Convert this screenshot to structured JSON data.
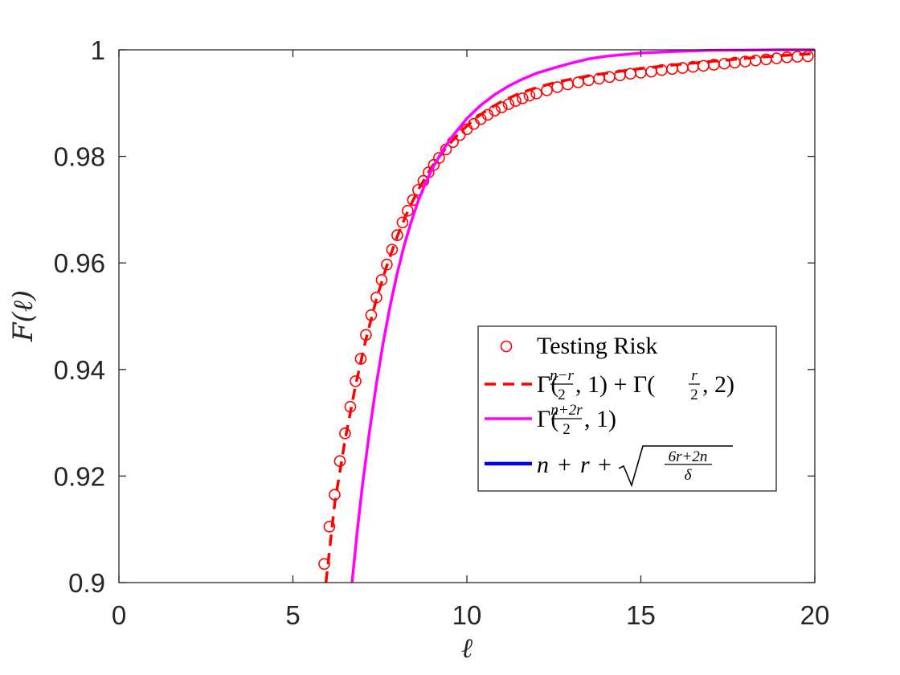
{
  "chart_data": {
    "type": "line",
    "xlabel": "ℓ",
    "ylabel": "F(ℓ)",
    "xlim": [
      0,
      20
    ],
    "ylim": [
      0.9,
      1
    ],
    "x_ticks": [
      "0",
      "5",
      "10",
      "15",
      "20"
    ],
    "y_ticks": [
      "0.9",
      "0.92",
      "0.94",
      "0.96",
      "0.98",
      "1"
    ],
    "grid": false,
    "legend_position": "center-right",
    "series": [
      {
        "name": "Testing Risk",
        "style": "markers",
        "marker": "circle",
        "color": "#ff0000",
        "x": [
          5.9,
          6.05,
          6.2,
          6.35,
          6.5,
          6.65,
          6.8,
          6.95,
          7.1,
          7.25,
          7.4,
          7.55,
          7.7,
          7.85,
          8.0,
          8.15,
          8.3,
          8.45,
          8.6,
          8.75,
          8.9,
          9.05,
          9.2,
          9.4,
          9.6,
          9.8,
          10.0,
          10.2,
          10.4,
          10.6,
          10.8,
          11.0,
          11.2,
          11.4,
          11.6,
          11.8,
          12.0,
          12.3,
          12.6,
          12.9,
          13.2,
          13.5,
          13.8,
          14.1,
          14.4,
          14.7,
          15.0,
          15.3,
          15.6,
          15.9,
          16.2,
          16.5,
          16.8,
          17.1,
          17.4,
          17.7,
          18.0,
          18.3,
          18.6,
          18.9,
          19.2,
          19.5,
          19.8
        ],
        "y": [
          0.9035,
          0.9105,
          0.9165,
          0.9228,
          0.928,
          0.933,
          0.9378,
          0.942,
          0.9465,
          0.9502,
          0.9535,
          0.9568,
          0.9597,
          0.9625,
          0.9652,
          0.9676,
          0.9698,
          0.9718,
          0.9737,
          0.9754,
          0.977,
          0.9784,
          0.9797,
          0.9813,
          0.9827,
          0.984,
          0.9851,
          0.9861,
          0.987,
          0.9878,
          0.9886,
          0.9892,
          0.9898,
          0.9904,
          0.9909,
          0.9914,
          0.9918,
          0.9924,
          0.993,
          0.9935,
          0.9939,
          0.9943,
          0.9946,
          0.9949,
          0.9952,
          0.9955,
          0.9957,
          0.9959,
          0.9962,
          0.9964,
          0.9966,
          0.9968,
          0.997,
          0.9972,
          0.9974,
          0.9976,
          0.9978,
          0.998,
          0.9982,
          0.9984,
          0.9986,
          0.9987,
          0.9988
        ]
      },
      {
        "name": "Γ((n−r)/2, 1) + Γ(r/2, 2)",
        "style": "dashed",
        "color": "#ff0000",
        "x": [
          5.95,
          6.2,
          6.5,
          6.8,
          7.1,
          7.4,
          7.7,
          8.0,
          8.3,
          8.6,
          9.0,
          9.4,
          9.8,
          10.2,
          10.6,
          11.0,
          11.5,
          12.0,
          12.5,
          13.0,
          13.5,
          14.0,
          15.0,
          16.0,
          17.0,
          18.0,
          19.0,
          20.0
        ],
        "y": [
          0.9,
          0.9148,
          0.9268,
          0.937,
          0.9457,
          0.9532,
          0.9595,
          0.965,
          0.9697,
          0.9737,
          0.9781,
          0.9816,
          0.9845,
          0.9869,
          0.9888,
          0.9903,
          0.9918,
          0.9929,
          0.9938,
          0.9945,
          0.9951,
          0.9956,
          0.9965,
          0.9972,
          0.9978,
          0.9984,
          0.9989,
          0.9993
        ]
      },
      {
        "name": "Γ((n+2r)/2, 1)",
        "style": "solid",
        "color": "#ff00ff",
        "x": [
          6.7,
          6.85,
          7.0,
          7.2,
          7.4,
          7.6,
          7.8,
          8.0,
          8.2,
          8.4,
          8.6,
          8.8,
          9.0,
          9.3,
          9.6,
          10.0,
          10.4,
          10.8,
          11.2,
          11.6,
          12.0,
          12.5,
          13.0,
          13.5,
          14.0,
          15.0,
          16.0,
          17.0,
          18.0,
          19.0,
          20.0
        ],
        "y": [
          0.9,
          0.9097,
          0.9183,
          0.9283,
          0.9373,
          0.9452,
          0.9521,
          0.9581,
          0.9633,
          0.9677,
          0.9716,
          0.9748,
          0.9776,
          0.9811,
          0.9839,
          0.9871,
          0.9896,
          0.9916,
          0.9932,
          0.9945,
          0.9956,
          0.9966,
          0.9975,
          0.9983,
          0.9988,
          0.9994,
          0.9997,
          0.9999,
          0.99995,
          1.0,
          1.0
        ]
      },
      {
        "name": "n + r + √((6r+2n)/δ)",
        "style": "solid",
        "color": "#0000ff",
        "x": [],
        "y": []
      }
    ]
  }
}
